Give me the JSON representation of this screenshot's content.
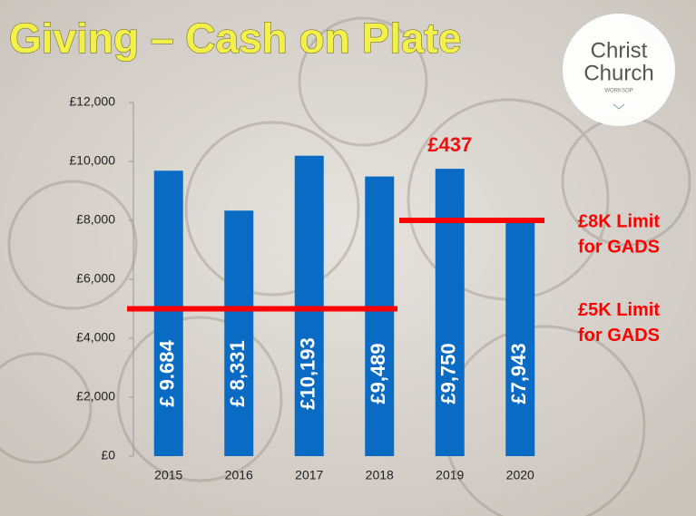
{
  "chart_data": {
    "type": "bar",
    "title": "Giving – Cash on Plate",
    "logo": {
      "line1": "Christ",
      "line2": "Church",
      "line3": "WORKSOP"
    },
    "categories": [
      "2015",
      "2016",
      "2017",
      "2018",
      "2019",
      "2020"
    ],
    "values": [
      9684,
      8331,
      10193,
      9489,
      9750,
      7943
    ],
    "value_labels": [
      "£ 9.684",
      "£ 8,331",
      "£10,193",
      "£9,489",
      "£9,750",
      "£7,943"
    ],
    "color": "#0a6bc4",
    "ylim": [
      0,
      12000
    ],
    "yticks": [
      {
        "value": 0,
        "label": "£0"
      },
      {
        "value": 2000,
        "label": "£2,000"
      },
      {
        "value": 4000,
        "label": "£4,000"
      },
      {
        "value": 6000,
        "label": "£6,000"
      },
      {
        "value": 8000,
        "label": "£8,000"
      },
      {
        "value": 10000,
        "label": "£10,000"
      },
      {
        "value": 12000,
        "label": "£12,000"
      }
    ],
    "reference_lines": [
      {
        "value": 5000,
        "label": [
          "£5K Limit",
          "for GADS"
        ],
        "color": "#ff0000"
      },
      {
        "value": 8000,
        "label": [
          "£8K Limit",
          "for GADS"
        ],
        "color": "#ff0000"
      }
    ],
    "annotations": [
      {
        "text": "£437"
      }
    ]
  }
}
